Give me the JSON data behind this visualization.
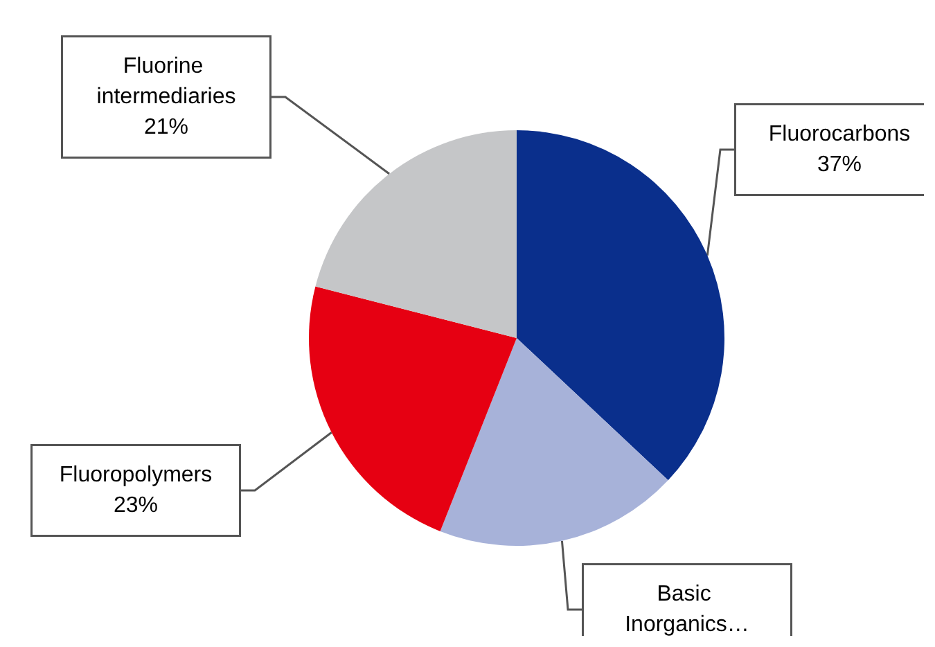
{
  "chart_data": {
    "type": "pie",
    "categories": [
      "Fluorocarbons",
      "Basic Inorganics…",
      "Fluoropolymers",
      "Fluorine intermediaries"
    ],
    "values": [
      37,
      19,
      23,
      21
    ],
    "value_labels": [
      "37%",
      null,
      "23%",
      "21%"
    ],
    "colors": [
      "#0a2f8c",
      "#a7b2d9",
      "#e60012",
      "#c5c6c8"
    ],
    "legend": false
  }
}
